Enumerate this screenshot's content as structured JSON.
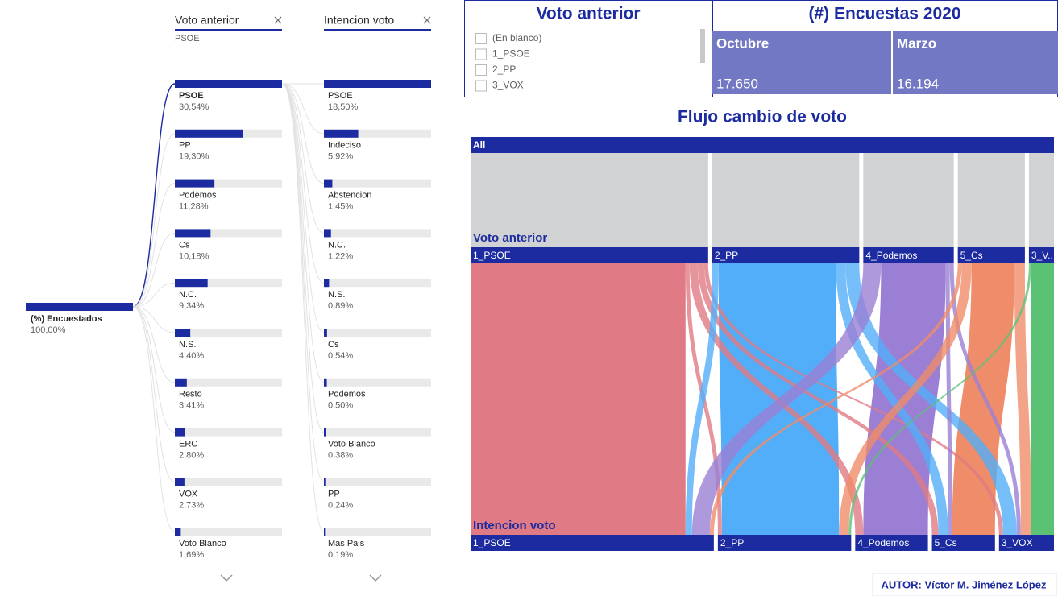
{
  "tree": {
    "root": {
      "label": "(%) Encuestados",
      "value": 100,
      "value_label": "100,00%"
    },
    "levels": [
      {
        "header": "Voto anterior",
        "filter": "PSOE",
        "selected": 0,
        "items": [
          {
            "label": "PSOE",
            "value": 30.54,
            "value_label": "30,54%"
          },
          {
            "label": "PP",
            "value": 19.3,
            "value_label": "19,30%"
          },
          {
            "label": "Podemos",
            "value": 11.28,
            "value_label": "11,28%"
          },
          {
            "label": "Cs",
            "value": 10.18,
            "value_label": "10,18%"
          },
          {
            "label": "N.C.",
            "value": 9.34,
            "value_label": "9,34%"
          },
          {
            "label": "N.S.",
            "value": 4.4,
            "value_label": "4,40%"
          },
          {
            "label": "Resto",
            "value": 3.41,
            "value_label": "3,41%"
          },
          {
            "label": "ERC",
            "value": 2.8,
            "value_label": "2,80%"
          },
          {
            "label": "VOX",
            "value": 2.73,
            "value_label": "2,73%"
          },
          {
            "label": "Voto Blanco",
            "value": 1.69,
            "value_label": "1,69%"
          }
        ]
      },
      {
        "header": "Intencion voto",
        "items": [
          {
            "label": "PSOE",
            "value": 18.5,
            "value_label": "18,50%"
          },
          {
            "label": "Indeciso",
            "value": 5.92,
            "value_label": "5,92%"
          },
          {
            "label": "Abstencion",
            "value": 1.45,
            "value_label": "1,45%"
          },
          {
            "label": "N.C.",
            "value": 1.22,
            "value_label": "1,22%"
          },
          {
            "label": "N.S.",
            "value": 0.89,
            "value_label": "0,89%"
          },
          {
            "label": "Cs",
            "value": 0.54,
            "value_label": "0,54%"
          },
          {
            "label": "Podemos",
            "value": 0.5,
            "value_label": "0,50%"
          },
          {
            "label": "Voto Blanco",
            "value": 0.38,
            "value_label": "0,38%"
          },
          {
            "label": "PP",
            "value": 0.24,
            "value_label": "0,24%"
          },
          {
            "label": "Mas Pais",
            "value": 0.19,
            "value_label": "0,19%"
          }
        ]
      }
    ]
  },
  "slicer": {
    "title": "Voto anterior",
    "options": [
      "(En blanco)",
      "1_PSOE",
      "2_PP",
      "3_VOX"
    ]
  },
  "cards": {
    "title": "(#) Encuestas 2020",
    "items": [
      {
        "label": "Octubre",
        "value": "17.650"
      },
      {
        "label": "Marzo",
        "value": "16.194"
      }
    ]
  },
  "sankey": {
    "title": "Flujo cambio de voto",
    "root": "All",
    "source_level": "Voto anterior",
    "target_level": "Intencion voto",
    "sources": [
      {
        "name": "1_PSOE",
        "color": "#e07a84"
      },
      {
        "name": "2_PP",
        "color": "#52aef9"
      },
      {
        "name": "4_Podemos",
        "color": "#9b7fd4"
      },
      {
        "name": "5_Cs",
        "color": "#ef8c6a"
      },
      {
        "name": "3_V...",
        "color": "#5bc275"
      }
    ],
    "targets": [
      "1_PSOE",
      "2_PP",
      "4_Podemos",
      "5_Cs",
      "3_VOX"
    ],
    "links": [
      {
        "source": 0,
        "target": 0,
        "value": 266
      },
      {
        "source": 0,
        "target": 1,
        "value": 5
      },
      {
        "source": 0,
        "target": 2,
        "value": 10
      },
      {
        "source": 0,
        "target": 3,
        "value": 8
      },
      {
        "source": 0,
        "target": 4,
        "value": 5
      },
      {
        "source": 1,
        "target": 0,
        "value": 8
      },
      {
        "source": 1,
        "target": 1,
        "value": 145
      },
      {
        "source": 1,
        "target": 3,
        "value": 12
      },
      {
        "source": 1,
        "target": 4,
        "value": 17
      },
      {
        "source": 2,
        "target": 0,
        "value": 22
      },
      {
        "source": 2,
        "target": 2,
        "value": 80
      },
      {
        "source": 2,
        "target": 3,
        "value": 5
      },
      {
        "source": 2,
        "target": 4,
        "value": 5
      },
      {
        "source": 3,
        "target": 0,
        "value": 5
      },
      {
        "source": 3,
        "target": 1,
        "value": 12
      },
      {
        "source": 3,
        "target": 3,
        "value": 53
      },
      {
        "source": 3,
        "target": 4,
        "value": 13
      },
      {
        "source": 4,
        "target": 1,
        "value": 3
      },
      {
        "source": 4,
        "target": 4,
        "value": 28
      }
    ]
  },
  "author": "AUTOR: Víctor M. Jiménez López"
}
